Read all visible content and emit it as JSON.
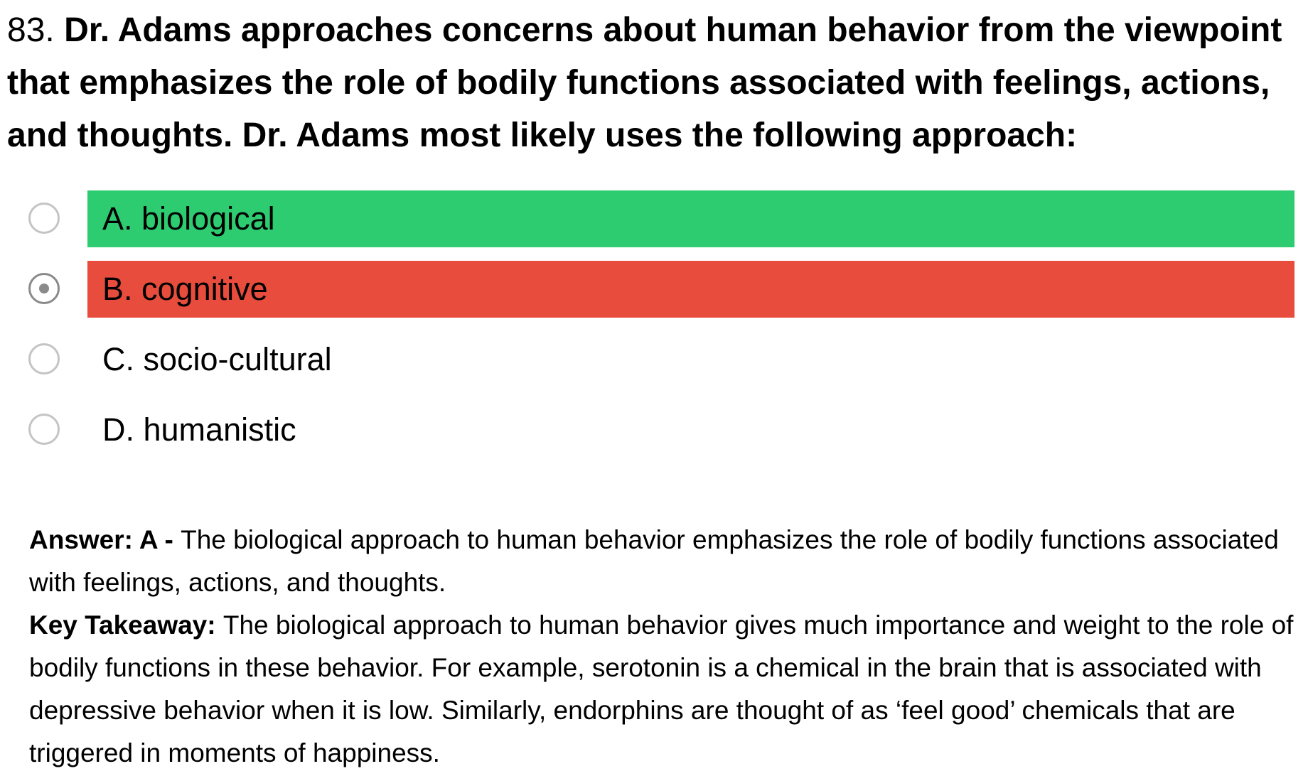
{
  "question": {
    "number": "83.",
    "text": "Dr. Adams approaches concerns about human behavior from the viewpoint that emphasizes the role of bodily functions associated with feelings, actions, and thoughts. Dr. Adams most likely uses the following approach:"
  },
  "options": [
    {
      "label": "A. biological",
      "state": "correct",
      "checked": false
    },
    {
      "label": "B. cognitive",
      "state": "incorrect",
      "checked": true
    },
    {
      "label": "C. socio-cultural",
      "state": "neutral",
      "checked": false
    },
    {
      "label": "D. humanistic",
      "state": "neutral",
      "checked": false
    }
  ],
  "explanation": {
    "answer_label": "Answer: A - ",
    "answer_text": "The biological approach to human behavior emphasizes the role of bodily functions associated with feelings, actions, and thoughts.",
    "takeaway_label": "Key Takeaway: ",
    "takeaway_text": "The biological approach to human behavior gives much importance and weight to the role of bodily functions in these behavior. For example, serotonin is a chemical in the brain that is associated with depressive behavior when it is low. Similarly, endorphins are thought of as ‘feel good’ chemicals that are triggered in moments of happiness."
  },
  "colors": {
    "correct": "#2ecc71",
    "incorrect": "#e74c3c",
    "radio_border": "#c4c4c4",
    "radio_checked": "#8a8a8a"
  }
}
